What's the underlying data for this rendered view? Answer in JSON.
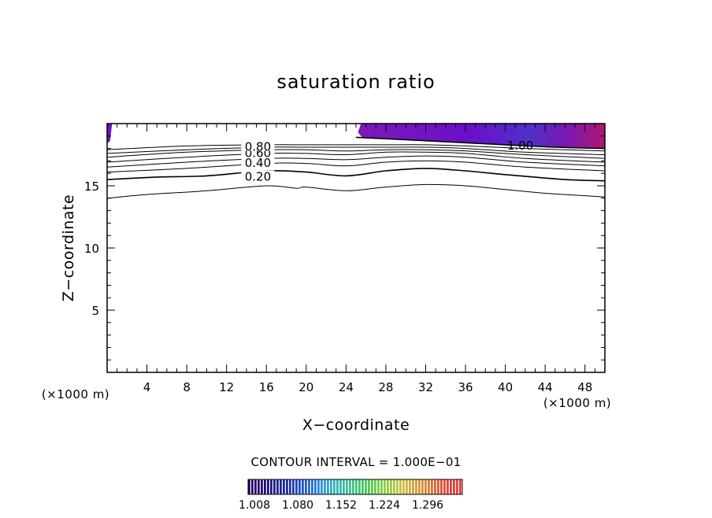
{
  "chart_data": {
    "type": "contour",
    "title": "saturation ratio",
    "xlabel": "X−coordinate",
    "ylabel": "Z−coordinate",
    "x_unit_left": "(×1000 m)",
    "x_unit_right": "(×1000 m)",
    "xlim": [
      0,
      50
    ],
    "ylim": [
      0,
      20
    ],
    "xticks": [
      4,
      8,
      12,
      16,
      20,
      24,
      28,
      32,
      36,
      40,
      44,
      48
    ],
    "yticks": [
      5,
      10,
      15
    ],
    "contour_levels": [
      {
        "level": 0.1,
        "label": "",
        "pts": [
          [
            0,
            14.0
          ],
          [
            4,
            14.3
          ],
          [
            10,
            14.6
          ],
          [
            16,
            15.0
          ],
          [
            19,
            14.8
          ],
          [
            20,
            14.9
          ],
          [
            24,
            14.6
          ],
          [
            28,
            14.9
          ],
          [
            32,
            15.1
          ],
          [
            36,
            15.0
          ],
          [
            40,
            14.7
          ],
          [
            44,
            14.4
          ],
          [
            48,
            14.2
          ],
          [
            50,
            14.1
          ]
        ]
      },
      {
        "level": 0.2,
        "label": "0.20",
        "pts": [
          [
            0,
            15.5
          ],
          [
            5,
            15.7
          ],
          [
            10,
            15.8
          ],
          [
            16,
            16.2
          ],
          [
            20,
            16.1
          ],
          [
            24,
            15.8
          ],
          [
            28,
            16.2
          ],
          [
            32,
            16.4
          ],
          [
            36,
            16.2
          ],
          [
            40,
            15.9
          ],
          [
            46,
            15.5
          ],
          [
            50,
            15.4
          ]
        ]
      },
      {
        "level": 0.3,
        "label": "",
        "pts": [
          [
            0,
            16.1
          ],
          [
            8,
            16.4
          ],
          [
            16,
            16.8
          ],
          [
            20,
            16.8
          ],
          [
            24,
            16.6
          ],
          [
            28,
            16.9
          ],
          [
            32,
            17.0
          ],
          [
            36,
            16.9
          ],
          [
            42,
            16.5
          ],
          [
            50,
            16.2
          ]
        ]
      },
      {
        "level": 0.4,
        "label": "0.40",
        "pts": [
          [
            0,
            16.5
          ],
          [
            8,
            16.9
          ],
          [
            16,
            17.2
          ],
          [
            20,
            17.2
          ],
          [
            24,
            17.1
          ],
          [
            28,
            17.3
          ],
          [
            32,
            17.4
          ],
          [
            36,
            17.3
          ],
          [
            42,
            16.9
          ],
          [
            50,
            16.6
          ]
        ]
      },
      {
        "level": 0.5,
        "label": "",
        "pts": [
          [
            0,
            16.9
          ],
          [
            8,
            17.3
          ],
          [
            16,
            17.6
          ],
          [
            20,
            17.6
          ],
          [
            24,
            17.5
          ],
          [
            28,
            17.7
          ],
          [
            32,
            17.7
          ],
          [
            36,
            17.6
          ],
          [
            42,
            17.2
          ],
          [
            50,
            16.9
          ]
        ]
      },
      {
        "level": 0.6,
        "label": "0.60",
        "pts": [
          [
            0,
            17.3
          ],
          [
            8,
            17.7
          ],
          [
            16,
            17.9
          ],
          [
            20,
            17.9
          ],
          [
            24,
            17.8
          ],
          [
            28,
            17.9
          ],
          [
            32,
            17.9
          ],
          [
            36,
            17.8
          ],
          [
            42,
            17.5
          ],
          [
            50,
            17.2
          ]
        ]
      },
      {
        "level": 0.7,
        "label": "",
        "pts": [
          [
            0,
            17.6
          ],
          [
            8,
            17.9
          ],
          [
            16,
            18.1
          ],
          [
            20,
            18.1
          ],
          [
            24,
            18.1
          ],
          [
            28,
            18.1
          ],
          [
            32,
            18.1
          ],
          [
            36,
            18.0
          ],
          [
            42,
            17.7
          ],
          [
            50,
            17.5
          ]
        ]
      },
      {
        "level": 0.8,
        "label": "0.80",
        "pts": [
          [
            0,
            17.9
          ],
          [
            8,
            18.2
          ],
          [
            16,
            18.3
          ],
          [
            20,
            18.3
          ],
          [
            24,
            18.3
          ],
          [
            28,
            18.3
          ],
          [
            32,
            18.3
          ],
          [
            36,
            18.2
          ],
          [
            42,
            18.0
          ],
          [
            50,
            17.8
          ]
        ]
      },
      {
        "level": 1.0,
        "label": "1.00",
        "pts": [
          [
            25,
            18.9
          ],
          [
            30,
            18.7
          ],
          [
            35,
            18.5
          ],
          [
            40,
            18.3
          ],
          [
            45,
            18.1
          ],
          [
            50,
            18.0
          ]
        ]
      }
    ],
    "filled_region": {
      "level_min": 1.008,
      "pts": [
        [
          25,
          20
        ],
        [
          50,
          20
        ],
        [
          50,
          18.0
        ],
        [
          45,
          18.1
        ],
        [
          40,
          18.3
        ],
        [
          35,
          18.5
        ],
        [
          30,
          18.7
        ],
        [
          25.6,
          18.9
        ],
        [
          25.2,
          19.3
        ],
        [
          25.5,
          20
        ]
      ]
    },
    "filled_region_left": {
      "pts": [
        [
          0,
          20
        ],
        [
          0.5,
          20
        ],
        [
          0.3,
          18.6
        ],
        [
          0,
          18.4
        ]
      ]
    },
    "colorbar": {
      "ticks": [
        "1.008",
        "1.080",
        "1.152",
        "1.224",
        "1.296"
      ],
      "colors": [
        "#2a0060",
        "#24107a",
        "#1a30a8",
        "#2060d0",
        "#30a0d8",
        "#38c0a0",
        "#40c860",
        "#88d040",
        "#c8c040",
        "#d89030",
        "#e05030",
        "#e83838"
      ]
    },
    "contour_interval_text": "CONTOUR INTERVAL = 1.000E−01"
  }
}
